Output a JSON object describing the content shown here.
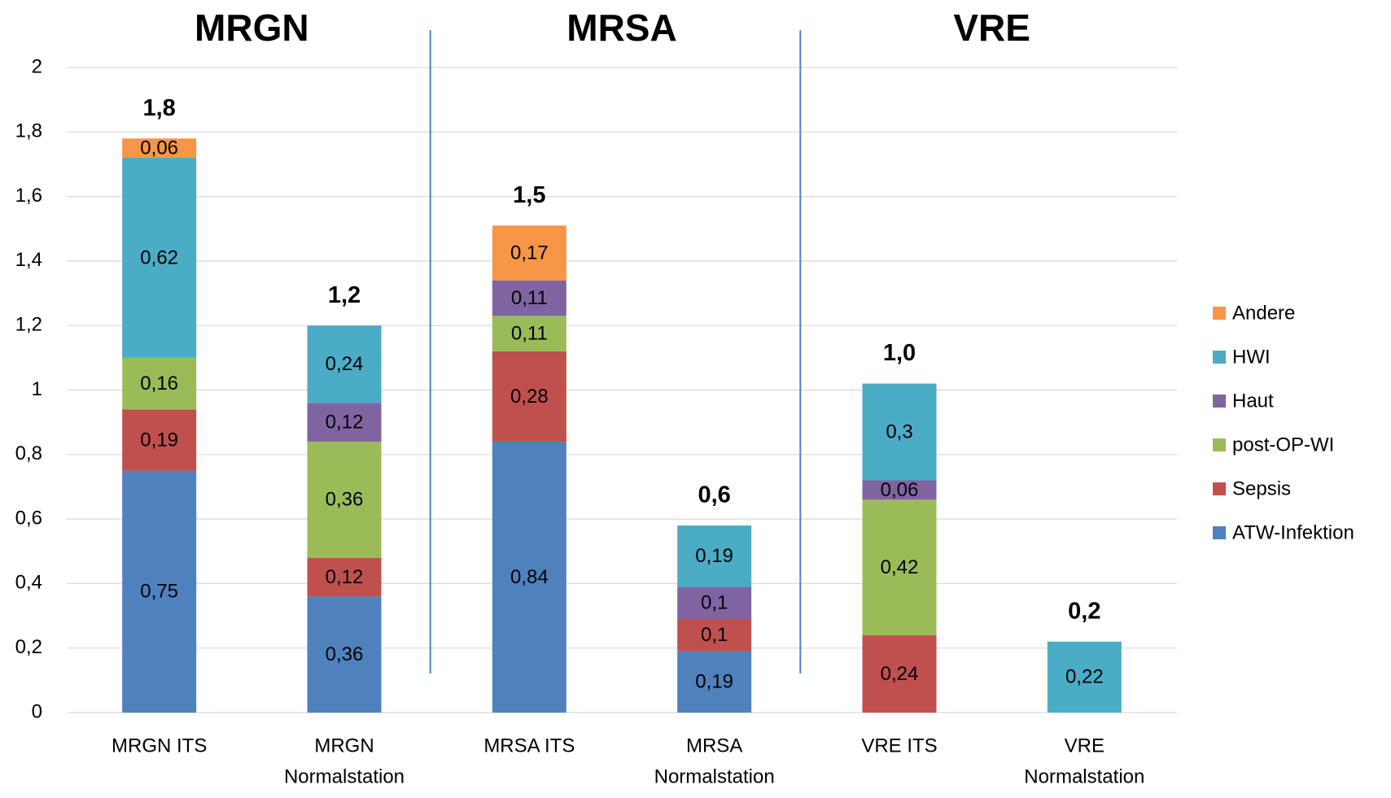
{
  "chart_data": {
    "type": "stacked_bar",
    "groups": [
      "MRGN",
      "MRSA",
      "VRE"
    ],
    "categories": [
      [
        "MRGN ITS"
      ],
      [
        "MRGN",
        "Normalstation"
      ],
      [
        "MRSA ITS"
      ],
      [
        "MRSA",
        "Normalstation"
      ],
      [
        "VRE ITS"
      ],
      [
        "VRE",
        "Normalstation"
      ]
    ],
    "series": [
      {
        "name": "ATW-Infektion",
        "color": "#4f81bd",
        "values": [
          0.75,
          0.36,
          0.84,
          0.19,
          null,
          null
        ],
        "value_labels": [
          "0,75",
          "0,36",
          "0,84",
          "0,19",
          null,
          null
        ]
      },
      {
        "name": "Sepsis",
        "color": "#c0504d",
        "values": [
          0.19,
          0.12,
          0.28,
          0.1,
          0.24,
          null
        ],
        "value_labels": [
          "0,19",
          "0,12",
          "0,28",
          "0,1",
          "0,24",
          null
        ]
      },
      {
        "name": "post-OP-WI",
        "color": "#9bbb59",
        "values": [
          0.16,
          0.36,
          0.11,
          null,
          0.42,
          null
        ],
        "value_labels": [
          "0,16",
          "0,36",
          "0,11",
          null,
          "0,42",
          null
        ]
      },
      {
        "name": "Haut",
        "color": "#8064a2",
        "values": [
          null,
          0.12,
          0.11,
          0.1,
          0.06,
          null
        ],
        "value_labels": [
          null,
          "0,12",
          "0,11",
          "0,1",
          "0,06",
          null
        ]
      },
      {
        "name": "HWI",
        "color": "#4bacc6",
        "values": [
          0.62,
          0.24,
          null,
          0.19,
          0.3,
          0.22
        ],
        "value_labels": [
          "0,62",
          "0,24",
          null,
          "0,19",
          "0,3",
          "0,22"
        ]
      },
      {
        "name": "Andere",
        "color": "#f79646",
        "values": [
          0.06,
          null,
          0.17,
          null,
          null,
          null
        ],
        "value_labels": [
          "0,06",
          null,
          "0,17",
          null,
          null,
          null
        ]
      }
    ],
    "totals": {
      "values": [
        1.8,
        1.2,
        1.5,
        0.6,
        1.0,
        0.2
      ],
      "value_labels": [
        "1,8",
        "1,2",
        "1,5",
        "0,6",
        "1,0",
        "0,2"
      ]
    },
    "ylim": [
      0,
      2
    ],
    "yticks": [
      0,
      {
        "value": 0.2,
        "label": "0,2"
      },
      {
        "value": 0.4,
        "label": "0,4"
      },
      {
        "value": 0.6,
        "label": "0,6"
      },
      {
        "value": 0.8,
        "label": "0,8"
      },
      1,
      {
        "value": 1.2,
        "label": "1,2"
      },
      {
        "value": 1.4,
        "label": "1,4"
      },
      {
        "value": 1.6,
        "label": "1,6"
      },
      {
        "value": 1.8,
        "label": "1,8"
      },
      2
    ],
    "grid": true,
    "legend": "right"
  }
}
